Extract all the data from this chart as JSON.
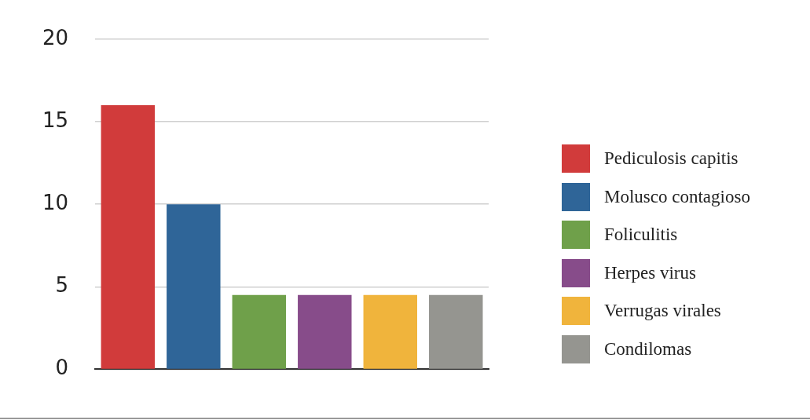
{
  "chart_data": {
    "type": "bar",
    "categories": [
      null,
      null,
      null,
      null,
      null,
      null
    ],
    "series": [
      {
        "name": "Pediculosis capitis",
        "color": "#d13b3b",
        "values": [
          16,
          null,
          null,
          null,
          null,
          null
        ]
      },
      {
        "name": "Molusco contagioso",
        "color": "#2f6598",
        "values": [
          null,
          10,
          null,
          null,
          null,
          null
        ]
      },
      {
        "name": "Foliculitis",
        "color": "#6fa04a",
        "values": [
          null,
          null,
          4.5,
          null,
          null,
          null
        ]
      },
      {
        "name": "Herpes virus",
        "color": "#874c8a",
        "values": [
          null,
          null,
          null,
          4.5,
          null,
          null
        ]
      },
      {
        "name": "Verrugas virales",
        "color": "#f0b43c",
        "values": [
          null,
          null,
          null,
          null,
          4.5,
          null
        ]
      },
      {
        "name": "Condilomas",
        "color": "#959590",
        "values": [
          null,
          null,
          null,
          null,
          null,
          4.5
        ]
      }
    ],
    "ylim": [
      0,
      20
    ],
    "yticks": [
      0,
      5,
      10,
      15,
      20
    ],
    "grid": "y",
    "legend": "right"
  }
}
